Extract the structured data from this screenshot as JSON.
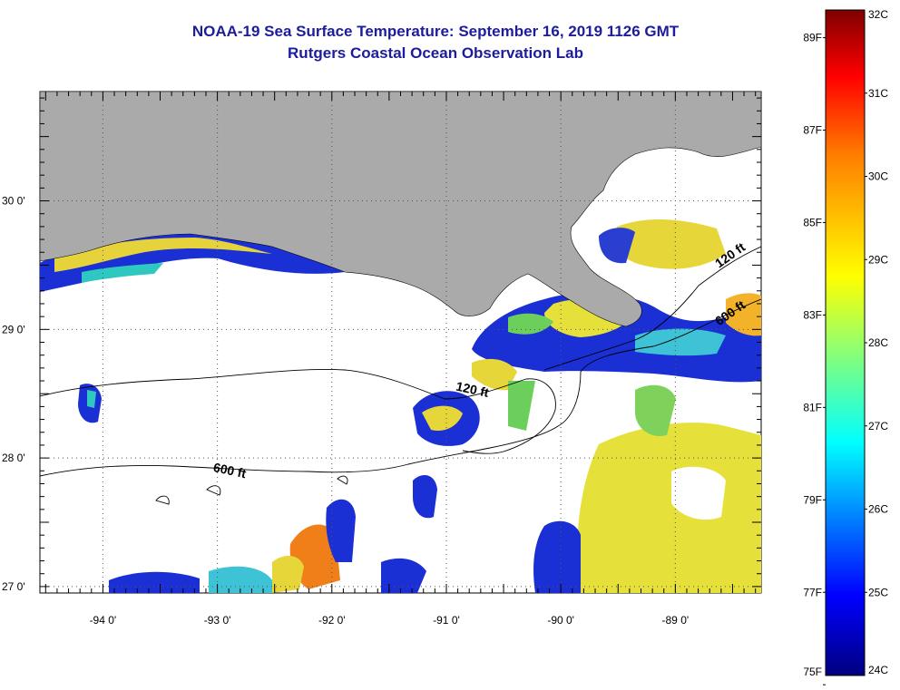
{
  "title": "NOAA-19 Sea Surface Temperature:  September 16, 2019 1126 GMT",
  "subtitle": "Rutgers Coastal Ocean Observation Lab",
  "map": {
    "lon_range": [
      -94.55,
      -88.25
    ],
    "lat_range": [
      26.95,
      30.85
    ],
    "lon_ticks": [
      {
        "value": -94,
        "label": "-94 0'"
      },
      {
        "value": -93,
        "label": "-93 0'"
      },
      {
        "value": -92,
        "label": "-92 0'"
      },
      {
        "value": -91,
        "label": "-91 0'"
      },
      {
        "value": -90,
        "label": "-90 0'"
      },
      {
        "value": -89,
        "label": "-89 0'"
      }
    ],
    "lat_ticks": [
      {
        "value": 30,
        "label": "30 0'"
      },
      {
        "value": 29,
        "label": "29 0'"
      },
      {
        "value": 28,
        "label": "28 0'"
      },
      {
        "value": 27,
        "label": "27 0'"
      }
    ],
    "contour_labels": [
      {
        "text": "120 ft",
        "lon": -90.78,
        "lat": 28.5
      },
      {
        "text": "600 ft",
        "lon": -92.9,
        "lat": 27.87
      },
      {
        "text": "120 ft",
        "lon": -88.5,
        "lat": 29.55
      },
      {
        "text": "600 ft",
        "lon": -88.5,
        "lat": 29.1
      }
    ],
    "colors": {
      "land": "#aaaaaa",
      "cloud": "#ffffff",
      "grid": "#555555"
    }
  },
  "colorbar": {
    "celsius": [
      "32C",
      "31C",
      "30C",
      "29C",
      "28C",
      "27C",
      "26C",
      "25C",
      "24C"
    ],
    "fahrenheit": [
      {
        "label": "89F",
        "value": 89
      },
      {
        "label": "87F",
        "value": 87
      },
      {
        "label": "85F",
        "value": 85
      },
      {
        "label": "83F",
        "value": 83
      },
      {
        "label": "81F",
        "value": 81
      },
      {
        "label": "79F",
        "value": 79
      },
      {
        "label": "77F",
        "value": 77
      },
      {
        "label": "75F",
        "value": 75
      }
    ],
    "range_c": [
      24,
      32
    ],
    "stops": [
      "#00007f",
      "#0000ff",
      "#00ffff",
      "#ffff00",
      "#ff7f00",
      "#ff0000",
      "#7f0000"
    ]
  }
}
